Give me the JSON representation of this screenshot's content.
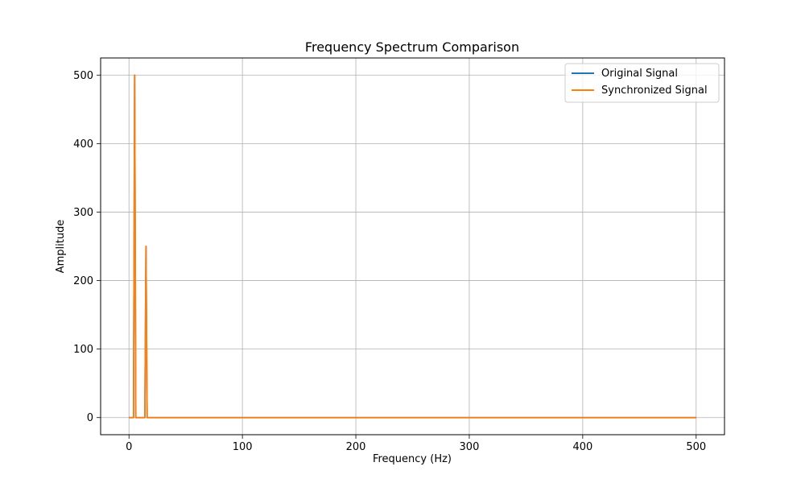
{
  "chart_data": {
    "type": "line",
    "title": "Frequency Spectrum Comparison",
    "xlabel": "Frequency (Hz)",
    "ylabel": "Amplitude",
    "xlim": [
      -25,
      525
    ],
    "ylim": [
      -25,
      525
    ],
    "xticks": [
      0,
      100,
      200,
      300,
      400,
      500
    ],
    "yticks": [
      0,
      100,
      200,
      300,
      400,
      500
    ],
    "grid": true,
    "legend_position": "top-right",
    "series": [
      {
        "name": "Original Signal",
        "color": "#1f77b4",
        "x": [
          0,
          4,
          5,
          6,
          14,
          15,
          16,
          500
        ],
        "y": [
          0,
          0,
          500,
          0,
          0,
          250,
          0,
          0
        ]
      },
      {
        "name": "Synchronized Signal",
        "color": "#ff7f0e",
        "x": [
          0,
          4,
          5,
          6,
          14,
          15,
          16,
          500
        ],
        "y": [
          0,
          0,
          500,
          0,
          0,
          250,
          0,
          0
        ]
      }
    ]
  }
}
